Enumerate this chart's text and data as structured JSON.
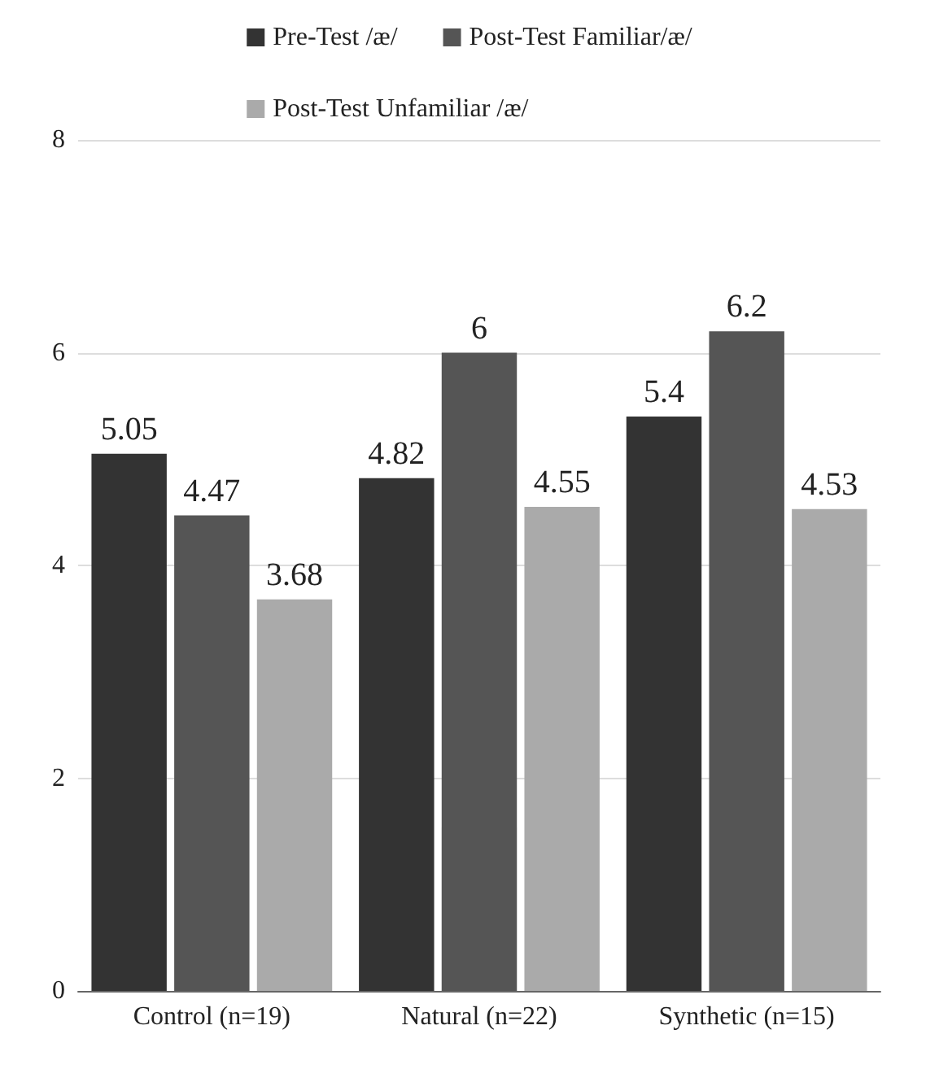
{
  "chart_data": {
    "type": "bar",
    "categories": [
      "Control (n=19)",
      "Natural (n=22)",
      "Synthetic (n=15)"
    ],
    "series": [
      {
        "name": "Pre-Test /æ/",
        "color": "#333333",
        "values": [
          5.05,
          4.82,
          5.4
        ]
      },
      {
        "name": "Post-Test Familiar/æ/",
        "color": "#555555",
        "values": [
          4.47,
          6,
          6.2
        ]
      },
      {
        "name": "Post-Test Unfamiliar /æ/",
        "color": "#aaaaaa",
        "values": [
          3.68,
          4.55,
          4.53
        ]
      }
    ],
    "ylim": [
      0,
      8
    ],
    "yticks": [
      0,
      2,
      4,
      6,
      8
    ],
    "grid": "y",
    "legend": "top",
    "data_labels": true
  }
}
